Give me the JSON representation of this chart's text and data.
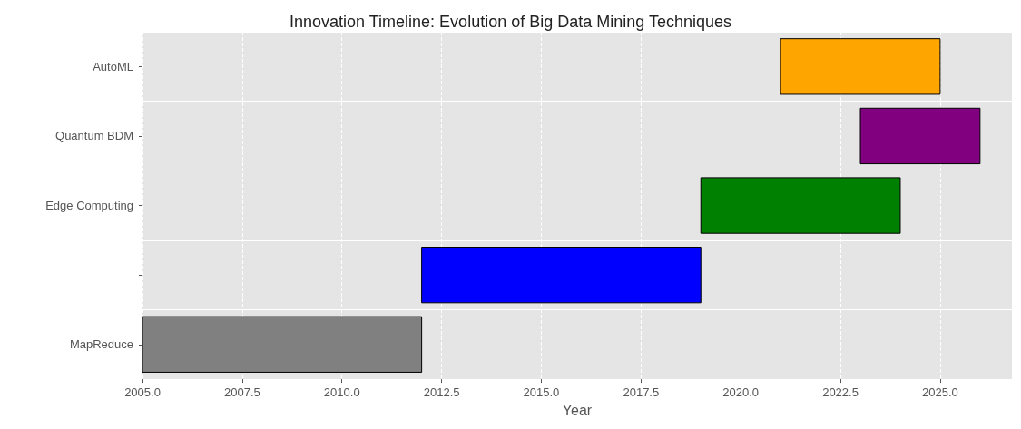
{
  "chart_data": {
    "type": "bar",
    "orientation": "horizontal",
    "title": "Innovation Timeline: Evolution of Big Data Mining Techniques",
    "xlabel": "Year",
    "categories": [
      "AutoML",
      "Quantum BDM",
      "Edge Computing",
      null,
      "MapReduce"
    ],
    "base": [
      2021,
      2023,
      2019,
      2012,
      2005
    ],
    "values": [
      4,
      3,
      5,
      7,
      7
    ],
    "colors": [
      "#ffa500",
      "#800080",
      "#008000",
      "#0000ff",
      "#808080"
    ],
    "xlim": [
      2005,
      2026.8
    ],
    "xticks": [
      {
        "value": 2005,
        "label": "2005.0"
      },
      {
        "value": 2007.5,
        "label": "2007.5"
      },
      {
        "value": 2010,
        "label": "2010.0"
      },
      {
        "value": 2012.5,
        "label": "2012.5"
      },
      {
        "value": 2015,
        "label": "2015.0"
      },
      {
        "value": 2017.5,
        "label": "2017.5"
      },
      {
        "value": 2020,
        "label": "2020.0"
      },
      {
        "value": 2022.5,
        "label": "2022.5"
      },
      {
        "value": 2025,
        "label": "2025.0"
      }
    ],
    "grid": true
  }
}
